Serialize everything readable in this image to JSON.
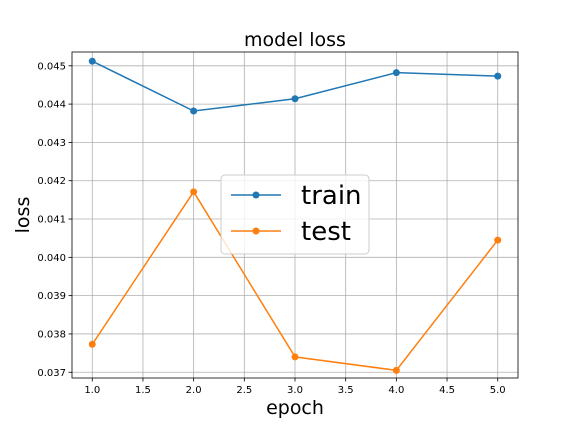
{
  "chart_data": {
    "type": "line",
    "title": "model loss",
    "xlabel": "epoch",
    "ylabel": "loss",
    "x": [
      1.0,
      2.0,
      3.0,
      4.0,
      5.0
    ],
    "xlim": [
      0.8,
      5.2
    ],
    "ylim": [
      0.03685,
      0.04536
    ],
    "xticks": [
      "1.0",
      "1.5",
      "2.0",
      "2.5",
      "3.0",
      "3.5",
      "4.0",
      "4.5",
      "5.0"
    ],
    "yticks": [
      "0.037",
      "0.038",
      "0.039",
      "0.040",
      "0.041",
      "0.042",
      "0.043",
      "0.044",
      "0.045"
    ],
    "grid": true,
    "legend_position": "center",
    "series": [
      {
        "name": "train",
        "color": "#1f77b4",
        "values": [
          0.04512,
          0.04382,
          0.04414,
          0.04482,
          0.04473
        ]
      },
      {
        "name": "test",
        "color": "#ff7f0e",
        "values": [
          0.03773,
          0.04171,
          0.0374,
          0.03705,
          0.04045
        ]
      }
    ]
  }
}
